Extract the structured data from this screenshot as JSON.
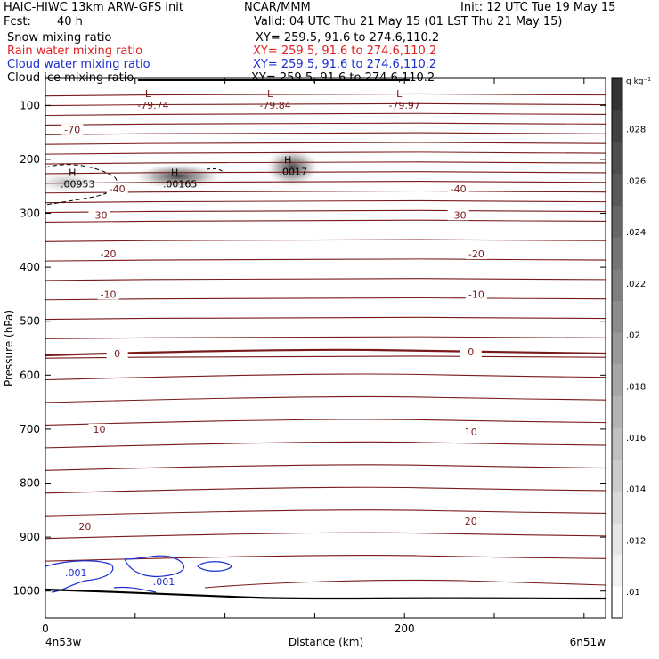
{
  "header": {
    "title_left": "HAIC-HIWC 13km ARW-GFS init",
    "center_label": "NCAR/MMM",
    "init_label": "Init: 12 UTC Tue 19 May 15",
    "fcst_label": "Fcst:",
    "fcst_value": "40 h",
    "valid_label": "Valid: 04 UTC Thu 21 May 15 (01 LST Thu 21 May 15)",
    "fields": [
      {
        "name": "Snow mixing ratio",
        "xy": "XY= 259.5, 91.6 to 274.6,110.2",
        "color": "#000000"
      },
      {
        "name": "Rain water mixing ratio",
        "xy": "XY= 259.5, 91.6 to 274.6,110.2",
        "color": "#e02020"
      },
      {
        "name": "Cloud water mixing ratio",
        "xy": "XY= 259.5, 91.6 to 274.6,110.2",
        "color": "#1c2fd0"
      },
      {
        "name": "Cloud ice mixing ratio",
        "xy": "XY= 259.5, 91.6 to 274.6,110.2",
        "color": "#000000"
      }
    ]
  },
  "chart_data": {
    "type": "heatmap",
    "xlabel": "Distance (km)",
    "ylabel": "Pressure (hPa)",
    "x_ticks": [
      "0",
      "200"
    ],
    "x_endpoints": [
      "4n53w",
      "6n51w"
    ],
    "xlim": [
      0,
      312
    ],
    "ylim": [
      1050,
      50
    ],
    "y_ticks": [
      100,
      200,
      300,
      400,
      500,
      600,
      700,
      800,
      900,
      1000
    ],
    "colorbar": {
      "unit": "g kg⁻¹",
      "range": [
        0.009,
        0.03
      ],
      "ticks": [
        ".01",
        ".012",
        ".014",
        ".016",
        ".018",
        ".02",
        ".022",
        ".024",
        ".026",
        ".028"
      ],
      "colors_low_to_high": [
        "#ffffff",
        "#f2f2f2",
        "#e6e6e6",
        "#d9d9d9",
        "#cccccc",
        "#bfbfbf",
        "#b3b3b3",
        "#a6a6a6",
        "#999999",
        "#8c8c8c",
        "#7f7f7f",
        "#737373",
        "#666666",
        "#595959",
        "#4d4d4d",
        "#404040",
        "#333333"
      ]
    },
    "isotherm_color": "#7a1a1a",
    "isotherm_labels": [
      {
        "value": "-70",
        "x": 15,
        "p": 145
      },
      {
        "value": "-40",
        "x": 40,
        "p": 255
      },
      {
        "value": "-40",
        "x": 230,
        "p": 255
      },
      {
        "value": "-30",
        "x": 30,
        "p": 303
      },
      {
        "value": "-30",
        "x": 230,
        "p": 303
      },
      {
        "value": "-20",
        "x": 35,
        "p": 375
      },
      {
        "value": "-20",
        "x": 240,
        "p": 375
      },
      {
        "value": "-10",
        "x": 35,
        "p": 450
      },
      {
        "value": "-10",
        "x": 240,
        "p": 450
      },
      {
        "value": "0",
        "x": 40,
        "p": 560
      },
      {
        "value": "0",
        "x": 237,
        "p": 557
      },
      {
        "value": "10",
        "x": 30,
        "p": 700
      },
      {
        "value": "10",
        "x": 237,
        "p": 705
      },
      {
        "value": "20",
        "x": 22,
        "p": 880
      },
      {
        "value": "20",
        "x": 237,
        "p": 870
      }
    ],
    "extrema": [
      {
        "kind": "L",
        "value": "-79.74",
        "x": 60,
        "p": 85
      },
      {
        "kind": "L",
        "value": "-79.84",
        "x": 128,
        "p": 85
      },
      {
        "kind": "L",
        "value": "-79.97",
        "x": 200,
        "p": 85
      },
      {
        "kind": "H",
        "value": ".00953",
        "x": 18,
        "p": 231
      },
      {
        "kind": "H",
        "value": ".00165",
        "x": 75,
        "p": 231
      },
      {
        "kind": "H",
        "value": ".0017",
        "x": 138,
        "p": 208
      }
    ],
    "cloud_water_labels": [
      {
        "value": ".001",
        "x": 17,
        "p": 966
      },
      {
        "value": ".001",
        "x": 66,
        "p": 982
      }
    ]
  }
}
